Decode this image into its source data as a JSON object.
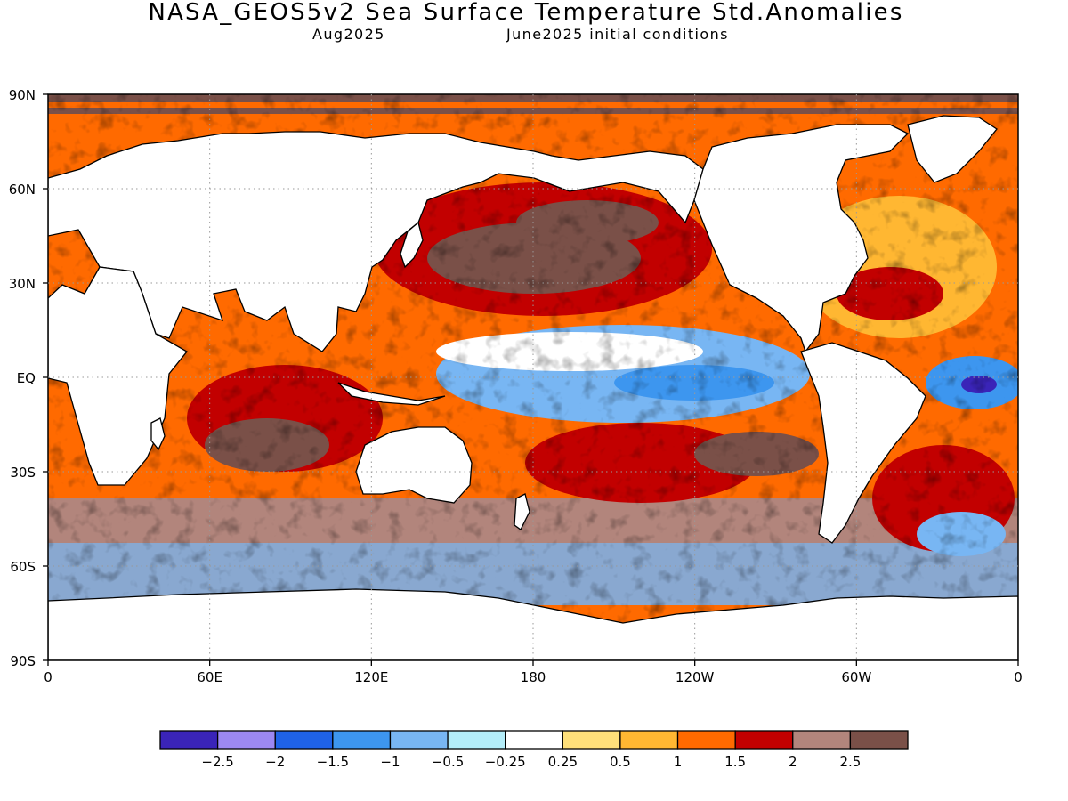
{
  "title": "NASA_GEOS5v2 Sea Surface Temperature Std.Anomalies",
  "subtitle_left": "Aug2025",
  "subtitle_right": "June2025 initial conditions",
  "lat_labels": [
    "90N",
    "60N",
    "30N",
    "EQ",
    "30S",
    "60S",
    "90S"
  ],
  "lon_labels": [
    "0",
    "60E",
    "120E",
    "180",
    "120W",
    "60W",
    "0"
  ],
  "colorbar": {
    "colors": [
      "#3a24b8",
      "#9c88f2",
      "#1f62e6",
      "#3d96ef",
      "#78b6f3",
      "#b4edf9",
      "#ffffff",
      "#ffe07a",
      "#ffb732",
      "#ff6a00",
      "#c20000",
      "#b2857c",
      "#7a5048"
    ],
    "tick_labels": [
      "-2.5",
      "-2",
      "-1.5",
      "-1",
      "-0.5",
      "-0.25",
      "0.25",
      "0.5",
      "1",
      "1.5",
      "2",
      "2.5"
    ]
  }
}
